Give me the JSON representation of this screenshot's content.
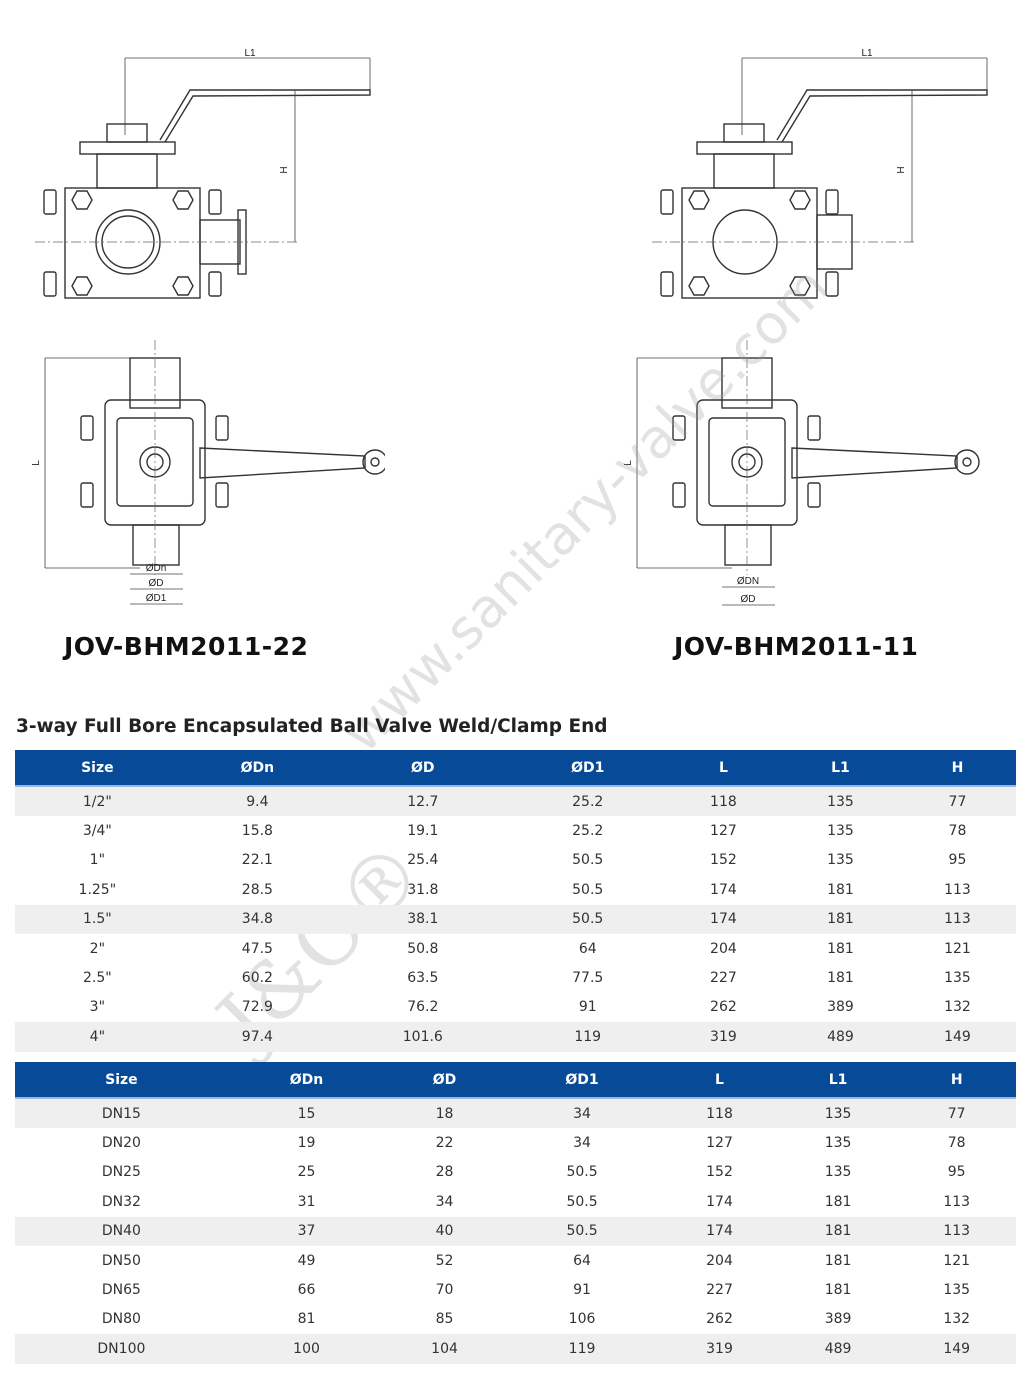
{
  "drawings": [
    {
      "model": "JOV-BHM2011-22",
      "top_labels": {
        "l1": "L1",
        "h": "H"
      },
      "side_labels": {
        "l": "L",
        "dn": "ØDn",
        "d": "ØD",
        "d1": "ØD1"
      }
    },
    {
      "model": "JOV-BHM2011-11",
      "top_labels": {
        "l1": "L1",
        "h": "H"
      },
      "side_labels": {
        "l": "L",
        "dn": "ØDN",
        "d": "ØD"
      }
    }
  ],
  "heading": "3-way Full Bore Encapsulated Ball Valve Weld/Clamp End",
  "watermark": {
    "url": "www.sanitary-valve.com",
    "logo": "J&O®"
  },
  "colors": {
    "header_bg": "#064a98",
    "row_shade": "#efefef"
  },
  "tables": [
    {
      "columns": [
        "Size",
        "ØDn",
        "ØD",
        "ØD1",
        "L",
        "L1",
        "H"
      ],
      "rows": [
        [
          "1/2\"",
          "9.4",
          "12.7",
          "25.2",
          "118",
          "135",
          "77"
        ],
        [
          "3/4\"",
          "15.8",
          "19.1",
          "25.2",
          "127",
          "135",
          "78"
        ],
        [
          "1\"",
          "22.1",
          "25.4",
          "50.5",
          "152",
          "135",
          "95"
        ],
        [
          "1.25\"",
          "28.5",
          "31.8",
          "50.5",
          "174",
          "181",
          "113"
        ],
        [
          "1.5\"",
          "34.8",
          "38.1",
          "50.5",
          "174",
          "181",
          "113"
        ],
        [
          "2\"",
          "47.5",
          "50.8",
          "64",
          "204",
          "181",
          "121"
        ],
        [
          "2.5\"",
          "60.2",
          "63.5",
          "77.5",
          "227",
          "181",
          "135"
        ],
        [
          "3\"",
          "72.9",
          "76.2",
          "91",
          "262",
          "389",
          "132"
        ],
        [
          "4\"",
          "97.4",
          "101.6",
          "119",
          "319",
          "489",
          "149"
        ]
      ]
    },
    {
      "columns": [
        "Size",
        "ØDn",
        "ØD",
        "ØD1",
        "L",
        "L1",
        "H"
      ],
      "rows": [
        [
          "DN15",
          "15",
          "18",
          "34",
          "118",
          "135",
          "77"
        ],
        [
          "DN20",
          "19",
          "22",
          "34",
          "127",
          "135",
          "78"
        ],
        [
          "DN25",
          "25",
          "28",
          "50.5",
          "152",
          "135",
          "95"
        ],
        [
          "DN32",
          "31",
          "34",
          "50.5",
          "174",
          "181",
          "113"
        ],
        [
          "DN40",
          "37",
          "40",
          "50.5",
          "174",
          "181",
          "113"
        ],
        [
          "DN50",
          "49",
          "52",
          "64",
          "204",
          "181",
          "121"
        ],
        [
          "DN65",
          "66",
          "70",
          "91",
          "227",
          "181",
          "135"
        ],
        [
          "DN80",
          "81",
          "85",
          "106",
          "262",
          "389",
          "132"
        ],
        [
          "DN100",
          "100",
          "104",
          "119",
          "319",
          "489",
          "149"
        ]
      ]
    }
  ]
}
